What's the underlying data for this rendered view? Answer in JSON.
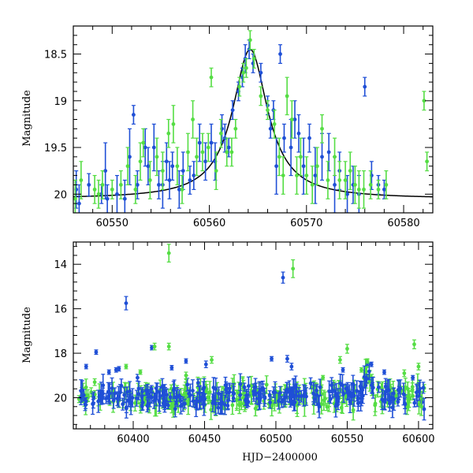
{
  "colors": {
    "blue": "#1f4fd6",
    "green": "#55dd44",
    "model": "#000000"
  },
  "chart_data": [
    {
      "type": "scatter",
      "ylabel": "Magnitude",
      "xlabel": "",
      "xlim": [
        60546,
        60583
      ],
      "ylim": [
        20.2,
        18.2
      ],
      "y_inverted": true,
      "xticks": [
        60550,
        60560,
        60570,
        60580
      ],
      "yticks": [
        18.5,
        19,
        19.5,
        20
      ],
      "ytick_labels": [
        "18.5",
        "19",
        "19.5",
        "20"
      ],
      "model_curve": {
        "type": "line",
        "color": "#000000",
        "peak_x": 60564.2,
        "peak_y": 18.45,
        "baseline": 20.05,
        "width": 2.2
      },
      "series": [
        {
          "color": "blue",
          "points": [
            [
              60546.3,
              19.95,
              0.2
            ],
            [
              60546.6,
              20.1,
              0.2
            ],
            [
              60547.6,
              19.9,
              0.12
            ],
            [
              60548.9,
              20.0,
              0.1
            ],
            [
              60549.3,
              19.75,
              0.3
            ],
            [
              60549.5,
              20.05,
              0.15
            ],
            [
              60550.5,
              20.0,
              0.2
            ],
            [
              60551.3,
              20.05,
              0.2
            ],
            [
              60551.8,
              19.6,
              0.3
            ],
            [
              60552.2,
              19.15,
              0.1
            ],
            [
              60552.6,
              19.9,
              0.15
            ],
            [
              60553.4,
              19.5,
              0.2
            ],
            [
              60553.7,
              19.7,
              0.2
            ],
            [
              60554.3,
              19.5,
              0.25
            ],
            [
              60554.8,
              19.9,
              0.15
            ],
            [
              60555.2,
              19.9,
              0.25
            ],
            [
              60555.6,
              19.65,
              0.2
            ],
            [
              60555.9,
              19.85,
              0.2
            ],
            [
              60556.2,
              19.7,
              0.15
            ],
            [
              60556.9,
              19.95,
              0.2
            ],
            [
              60557.3,
              19.75,
              0.2
            ],
            [
              60558.0,
              19.85,
              0.15
            ],
            [
              60558.4,
              19.8,
              0.15
            ],
            [
              60559.0,
              19.45,
              0.2
            ],
            [
              60559.6,
              19.65,
              0.2
            ],
            [
              60560.2,
              19.45,
              0.2
            ],
            [
              60560.6,
              19.65,
              0.2
            ],
            [
              60561.3,
              19.3,
              0.15
            ],
            [
              60561.6,
              19.4,
              0.15
            ],
            [
              60562.0,
              19.5,
              0.1
            ],
            [
              60562.4,
              19.1,
              0.1
            ],
            [
              60563.0,
              18.9,
              0.1
            ],
            [
              60563.4,
              18.75,
              0.1
            ],
            [
              60563.7,
              18.55,
              0.15
            ],
            [
              60564.1,
              18.45,
              0.1
            ],
            [
              60564.5,
              18.6,
              0.1
            ],
            [
              60565.3,
              18.7,
              0.1
            ],
            [
              60566.0,
              19.05,
              0.1
            ],
            [
              60566.3,
              19.3,
              0.1
            ],
            [
              60566.6,
              19.1,
              0.1
            ],
            [
              60566.9,
              19.7,
              0.3
            ],
            [
              60567.3,
              18.5,
              0.1
            ],
            [
              60567.7,
              19.4,
              0.15
            ],
            [
              60568.4,
              19.5,
              0.3
            ],
            [
              60568.8,
              19.2,
              0.2
            ],
            [
              60569.2,
              19.35,
              0.2
            ],
            [
              60569.7,
              19.7,
              0.3
            ],
            [
              60570.3,
              19.4,
              0.15
            ],
            [
              60570.9,
              19.8,
              0.3
            ],
            [
              60571.6,
              19.6,
              0.25
            ],
            [
              60572.3,
              19.55,
              0.2
            ],
            [
              60572.9,
              19.9,
              0.3
            ],
            [
              60573.4,
              19.75,
              0.2
            ],
            [
              60574.2,
              20.0,
              0.2
            ],
            [
              60574.8,
              19.9,
              0.2
            ],
            [
              60575.4,
              20.0,
              0.2
            ],
            [
              60576.0,
              18.85,
              0.1
            ],
            [
              60576.7,
              19.8,
              0.15
            ],
            [
              60577.4,
              19.9,
              0.1
            ],
            [
              60578.0,
              19.95,
              0.1
            ]
          ]
        },
        {
          "color": "green",
          "points": [
            [
              60546.2,
              20.05,
              0.2
            ],
            [
              60546.8,
              19.85,
              0.2
            ],
            [
              60548.2,
              19.95,
              0.15
            ],
            [
              60548.6,
              20.0,
              0.15
            ],
            [
              60549.0,
              19.9,
              0.15
            ],
            [
              60550.0,
              19.95,
              0.1
            ],
            [
              60550.9,
              19.9,
              0.15
            ],
            [
              60551.6,
              19.7,
              0.2
            ],
            [
              60552.4,
              19.95,
              0.15
            ],
            [
              60552.9,
              19.65,
              0.2
            ],
            [
              60553.2,
              19.45,
              0.15
            ],
            [
              60553.9,
              19.85,
              0.2
            ],
            [
              60554.6,
              19.6,
              0.2
            ],
            [
              60555.2,
              19.75,
              0.2
            ],
            [
              60555.8,
              19.35,
              0.15
            ],
            [
              60556.3,
              19.25,
              0.2
            ],
            [
              60556.7,
              19.7,
              0.2
            ],
            [
              60557.2,
              19.95,
              0.15
            ],
            [
              60557.8,
              19.55,
              0.2
            ],
            [
              60558.3,
              19.2,
              0.2
            ],
            [
              60558.7,
              19.6,
              0.2
            ],
            [
              60559.3,
              19.55,
              0.2
            ],
            [
              60559.9,
              19.5,
              0.15
            ],
            [
              60560.2,
              18.75,
              0.1
            ],
            [
              60560.7,
              19.75,
              0.2
            ],
            [
              60561.2,
              19.35,
              0.15
            ],
            [
              60561.8,
              19.55,
              0.15
            ],
            [
              60562.3,
              19.55,
              0.15
            ],
            [
              60562.7,
              19.3,
              0.1
            ],
            [
              60563.1,
              18.85,
              0.1
            ],
            [
              60563.5,
              18.7,
              0.1
            ],
            [
              60563.8,
              18.65,
              0.1
            ],
            [
              60564.2,
              18.35,
              0.1
            ],
            [
              60564.6,
              18.55,
              0.1
            ],
            [
              60565.3,
              18.95,
              0.1
            ],
            [
              60566.0,
              19.1,
              0.1
            ],
            [
              60566.7,
              19.25,
              0.15
            ],
            [
              60567.2,
              19.6,
              0.2
            ],
            [
              60567.6,
              19.8,
              0.2
            ],
            [
              60568.0,
              18.95,
              0.2
            ],
            [
              60568.5,
              19.2,
              0.2
            ],
            [
              60569.0,
              19.8,
              0.2
            ],
            [
              60569.4,
              19.6,
              0.2
            ],
            [
              60570.0,
              19.8,
              0.2
            ],
            [
              60570.6,
              19.9,
              0.2
            ],
            [
              60571.1,
              19.7,
              0.2
            ],
            [
              60571.6,
              19.3,
              0.15
            ],
            [
              60572.2,
              19.85,
              0.2
            ],
            [
              60572.9,
              19.6,
              0.2
            ],
            [
              60573.4,
              19.85,
              0.2
            ],
            [
              60574.0,
              19.85,
              0.2
            ],
            [
              60574.5,
              19.75,
              0.2
            ],
            [
              60575.0,
              19.9,
              0.2
            ],
            [
              60575.4,
              19.95,
              0.2
            ],
            [
              60575.9,
              19.95,
              0.2
            ],
            [
              60576.6,
              19.9,
              0.15
            ],
            [
              60577.4,
              19.95,
              0.1
            ],
            [
              60578.2,
              19.9,
              0.15
            ],
            [
              60582.1,
              19.0,
              0.1
            ],
            [
              60582.4,
              19.65,
              0.1
            ]
          ]
        }
      ]
    },
    {
      "type": "scatter",
      "ylabel": "Magnitude",
      "xlabel": "HJD−2400000",
      "xlim": [
        60358,
        60610
      ],
      "ylim": [
        21.4,
        13.0
      ],
      "y_inverted": true,
      "xticks": [
        60400,
        60450,
        60500,
        60550,
        60600
      ],
      "yticks": [
        14,
        16,
        18,
        20
      ],
      "ytick_labels": [
        "14",
        "16",
        "18",
        "20"
      ],
      "series": [
        {
          "color": "blue",
          "outliers": [
            [
              60367,
              18.6,
              0.1
            ],
            [
              60374,
              17.95,
              0.1
            ],
            [
              60383,
              18.85,
              0.1
            ],
            [
              60388,
              18.75,
              0.1
            ],
            [
              60390,
              18.7,
              0.1
            ],
            [
              60395,
              15.75,
              0.3
            ],
            [
              60403,
              19.1,
              0.15
            ],
            [
              60413,
              17.75,
              0.1
            ],
            [
              60427,
              18.65,
              0.1
            ],
            [
              60437,
              18.35,
              0.1
            ],
            [
              60451,
              18.5,
              0.15
            ],
            [
              60497,
              18.25,
              0.1
            ],
            [
              60505,
              14.6,
              0.25
            ],
            [
              60508,
              18.25,
              0.15
            ],
            [
              60511,
              18.6,
              0.15
            ],
            [
              60547,
              18.75,
              0.1
            ],
            [
              60564,
              18.45,
              0.1
            ],
            [
              60567,
              18.5,
              0.1
            ],
            [
              60576,
              18.85,
              0.1
            ],
            [
              60596,
              19.1,
              0.1
            ]
          ]
        },
        {
          "color": "green",
          "outliers": [
            [
              60373,
              19.3,
              0.15
            ],
            [
              60395,
              18.6,
              0.1
            ],
            [
              60405,
              18.85,
              0.1
            ],
            [
              60415,
              17.7,
              0.15
            ],
            [
              60425,
              13.5,
              0.4
            ],
            [
              60425,
              17.7,
              0.15
            ],
            [
              60437,
              19.0,
              0.15
            ],
            [
              60455,
              18.3,
              0.15
            ],
            [
              60512,
              14.2,
              0.4
            ],
            [
              60533,
              19.1,
              0.1
            ],
            [
              60545,
              18.3,
              0.15
            ],
            [
              60550,
              17.8,
              0.2
            ],
            [
              60560,
              18.75,
              0.1
            ],
            [
              60564,
              18.35,
              0.1
            ],
            [
              60590,
              18.9,
              0.15
            ],
            [
              60597,
              17.6,
              0.2
            ],
            [
              60600,
              18.6,
              0.15
            ],
            [
              60602,
              20.4,
              0.4
            ]
          ]
        }
      ]
    }
  ]
}
